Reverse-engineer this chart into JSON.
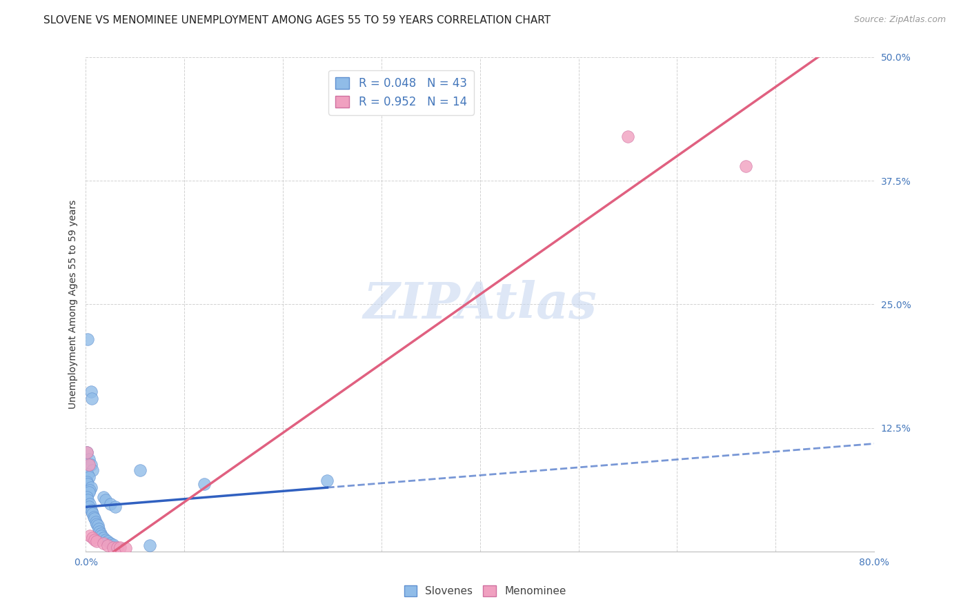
{
  "title": "SLOVENE VS MENOMINEE UNEMPLOYMENT AMONG AGES 55 TO 59 YEARS CORRELATION CHART",
  "source": "Source: ZipAtlas.com",
  "ylabel": "Unemployment Among Ages 55 to 59 years",
  "xlim": [
    0,
    0.8
  ],
  "ylim": [
    0,
    0.5
  ],
  "xticks": [
    0.0,
    0.1,
    0.2,
    0.3,
    0.4,
    0.5,
    0.6,
    0.7,
    0.8
  ],
  "yticks": [
    0.0,
    0.125,
    0.25,
    0.375,
    0.5
  ],
  "watermark": "ZIPAtlas",
  "legend_entries": [
    {
      "label": "R = 0.048   N = 43",
      "color": "#a8c8f0"
    },
    {
      "label": "R = 0.952   N = 14",
      "color": "#f5a8c0"
    }
  ],
  "slovene_points": [
    [
      0.002,
      0.215
    ],
    [
      0.005,
      0.162
    ],
    [
      0.006,
      0.155
    ],
    [
      0.001,
      0.1
    ],
    [
      0.003,
      0.093
    ],
    [
      0.005,
      0.088
    ],
    [
      0.007,
      0.082
    ],
    [
      0.002,
      0.078
    ],
    [
      0.003,
      0.075
    ],
    [
      0.001,
      0.07
    ],
    [
      0.002,
      0.068
    ],
    [
      0.005,
      0.065
    ],
    [
      0.004,
      0.062
    ],
    [
      0.003,
      0.06
    ],
    [
      0.001,
      0.055
    ],
    [
      0.002,
      0.052
    ],
    [
      0.004,
      0.048
    ],
    [
      0.003,
      0.045
    ],
    [
      0.005,
      0.042
    ],
    [
      0.006,
      0.04
    ],
    [
      0.007,
      0.038
    ],
    [
      0.008,
      0.035
    ],
    [
      0.009,
      0.033
    ],
    [
      0.01,
      0.03
    ],
    [
      0.011,
      0.028
    ],
    [
      0.012,
      0.026
    ],
    [
      0.013,
      0.023
    ],
    [
      0.014,
      0.02
    ],
    [
      0.015,
      0.018
    ],
    [
      0.016,
      0.016
    ],
    [
      0.018,
      0.014
    ],
    [
      0.02,
      0.012
    ],
    [
      0.022,
      0.01
    ],
    [
      0.025,
      0.008
    ],
    [
      0.028,
      0.007
    ],
    [
      0.018,
      0.055
    ],
    [
      0.02,
      0.052
    ],
    [
      0.025,
      0.048
    ],
    [
      0.03,
      0.045
    ],
    [
      0.055,
      0.082
    ],
    [
      0.065,
      0.006
    ],
    [
      0.12,
      0.068
    ],
    [
      0.245,
      0.072
    ]
  ],
  "menominee_points": [
    [
      0.001,
      0.1
    ],
    [
      0.003,
      0.088
    ],
    [
      0.004,
      0.016
    ],
    [
      0.007,
      0.014
    ],
    [
      0.009,
      0.012
    ],
    [
      0.011,
      0.01
    ],
    [
      0.018,
      0.008
    ],
    [
      0.022,
      0.006
    ],
    [
      0.028,
      0.004
    ],
    [
      0.032,
      0.004
    ],
    [
      0.035,
      0.004
    ],
    [
      0.04,
      0.003
    ],
    [
      0.55,
      0.42
    ],
    [
      0.67,
      0.39
    ]
  ],
  "blue_line_solid_start": 0.0,
  "blue_line_solid_end": 0.245,
  "blue_line_dash_end": 0.8,
  "blue_line_intercept": 0.045,
  "blue_line_slope": 0.08,
  "pink_line_start": 0.0,
  "pink_line_end": 0.8,
  "pink_line_intercept": -0.02,
  "pink_line_slope": 0.7,
  "blue_line_color": "#3060c0",
  "pink_line_color": "#e06080",
  "blue_dot_color": "#90bce8",
  "pink_dot_color": "#f0a0c0",
  "grid_color": "#cccccc",
  "background_color": "#ffffff",
  "title_fontsize": 11,
  "axis_label_fontsize": 10,
  "tick_fontsize": 10,
  "watermark_color": "#c8d8f0",
  "watermark_fontsize": 52,
  "tick_color": "#4477bb"
}
